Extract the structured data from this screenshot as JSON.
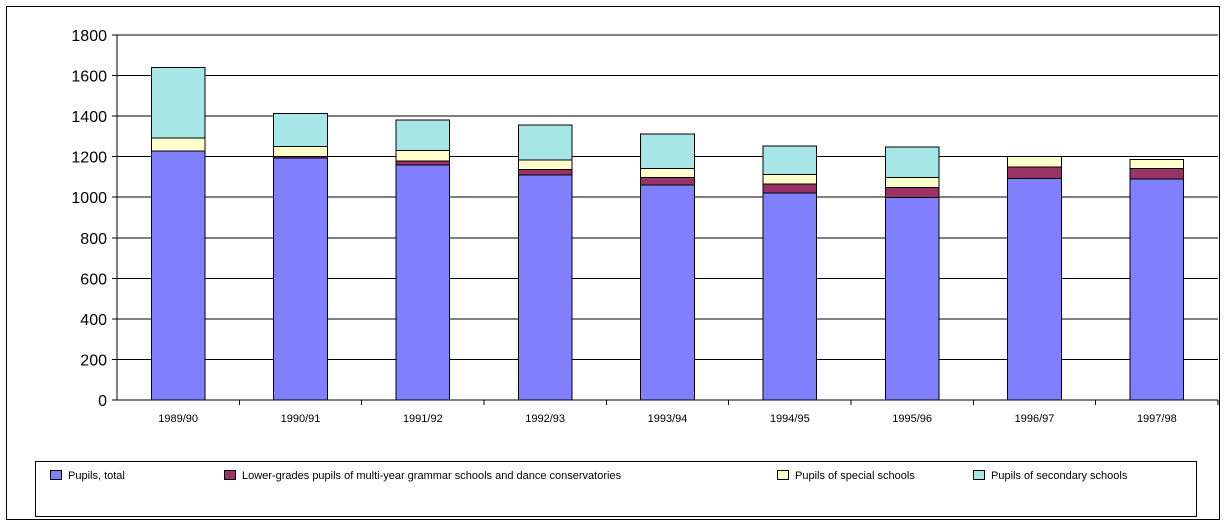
{
  "chart_data": {
    "type": "bar",
    "stacked": true,
    "categories": [
      "1989/90",
      "1990/91",
      "1991/92",
      "1992/93",
      "1993/94",
      "1994/95",
      "1995/96",
      "1996/97",
      "1997/98"
    ],
    "series": [
      {
        "name": "Pupils, total",
        "color": "#8080ff",
        "values": [
          1228,
          1193,
          1159,
          1109,
          1061,
          1022,
          999,
          1093,
          1090
        ]
      },
      {
        "name": "Lower-grades pupils of multi-year grammar schools and dance conservatories",
        "color": "#993366",
        "values": [
          0,
          7,
          20,
          28,
          37,
          44,
          48,
          56,
          52
        ]
      },
      {
        "name": "Pupils of special schools",
        "color": "#ffffcc",
        "values": [
          64,
          50,
          52,
          46,
          44,
          47,
          50,
          52,
          44
        ]
      },
      {
        "name": "Pupils of secondary schools",
        "color": "#a6e6e6",
        "values": [
          348,
          163,
          150,
          173,
          169,
          139,
          151,
          0,
          0
        ]
      }
    ],
    "ylim": [
      0,
      1800
    ],
    "yticks": [
      0,
      200,
      400,
      600,
      800,
      1000,
      1200,
      1400,
      1600,
      1800
    ],
    "grid": true,
    "legend_position": "bottom"
  }
}
